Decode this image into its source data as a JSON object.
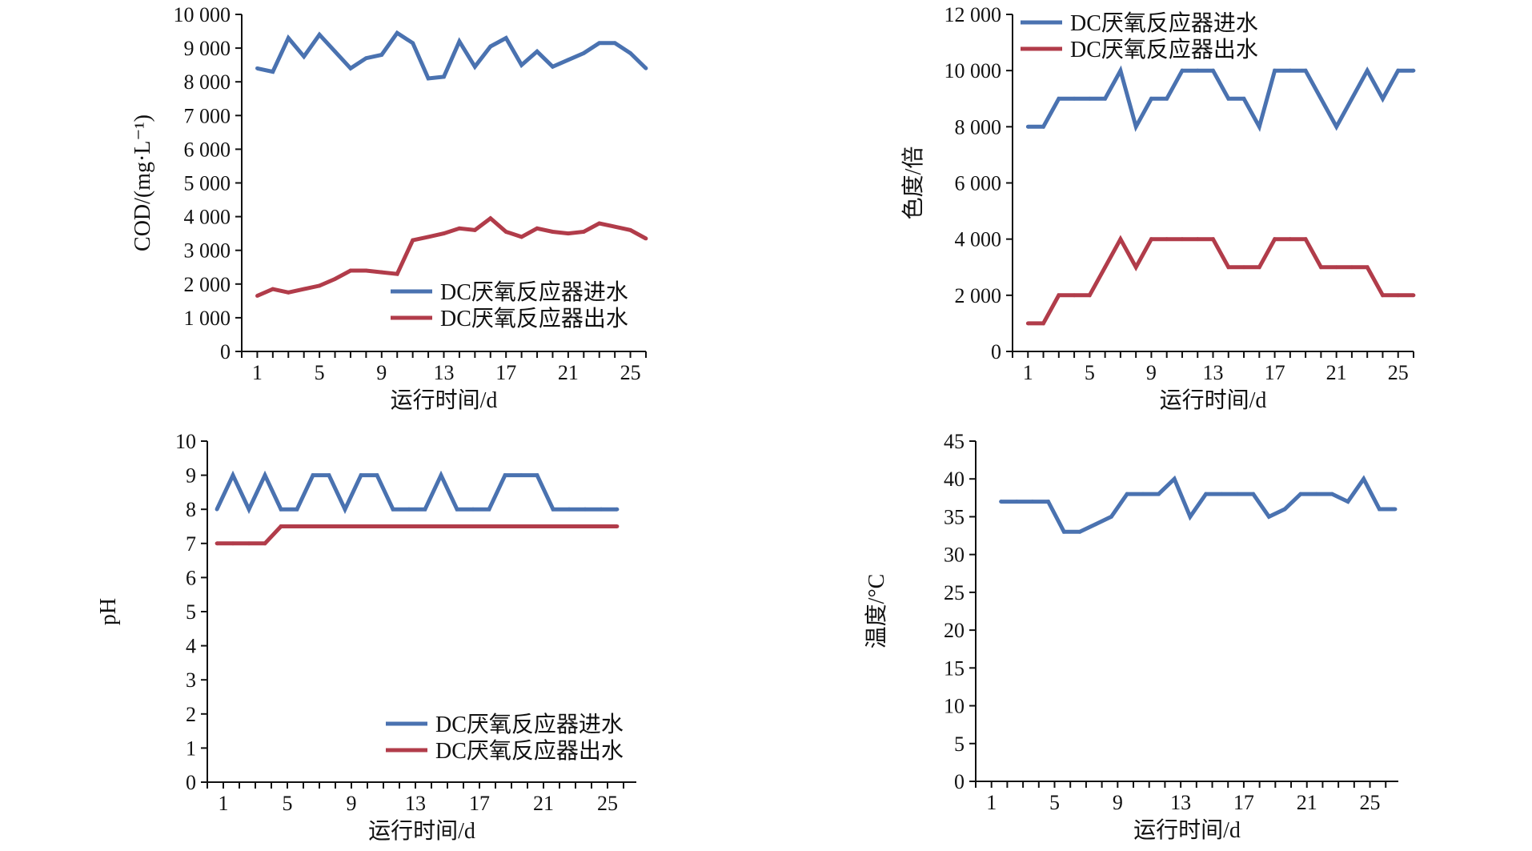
{
  "colors": {
    "inflow": "#4a72b0",
    "outflow": "#b13c4a",
    "axis": "#111111"
  },
  "series_names": {
    "inflow": "DC厌氧反应器进水",
    "outflow": "DC厌氧反应器出水"
  },
  "chart_data": [
    {
      "id": "cod",
      "type": "line",
      "xlabel": "运行时间/d",
      "ylabel": "COD/(mg·L⁻¹)",
      "xlim": [
        0,
        26
      ],
      "xticks": [
        1,
        5,
        9,
        13,
        17,
        21,
        25
      ],
      "ylim": [
        0,
        10000
      ],
      "yticks": [
        0,
        1000,
        2000,
        3000,
        4000,
        5000,
        6000,
        7000,
        8000,
        9000,
        10000
      ],
      "ytick_labels": [
        "0",
        "1 000",
        "2 000",
        "3 000",
        "4 000",
        "5 000",
        "6 000",
        "7 000",
        "8 000",
        "9 000",
        "10 000"
      ],
      "legend": "bottom-right",
      "x": [
        1,
        2,
        3,
        4,
        5,
        6,
        7,
        8,
        9,
        10,
        11,
        12,
        13,
        14,
        15,
        16,
        17,
        18,
        19,
        20,
        21,
        22,
        23,
        24,
        25,
        26
      ],
      "series": [
        {
          "name": "DC厌氧反应器进水",
          "key": "inflow",
          "values": [
            8400,
            8300,
            9300,
            8750,
            9400,
            8900,
            8400,
            8700,
            8800,
            9450,
            9150,
            8100,
            8150,
            9200,
            8450,
            9050,
            9300,
            8500,
            8900,
            8450,
            8650,
            8850,
            9150,
            9150,
            8850,
            8400
          ]
        },
        {
          "name": "DC厌氧反应器出水",
          "key": "outflow",
          "values": [
            1650,
            1850,
            1750,
            1850,
            1950,
            2150,
            2400,
            2400,
            2350,
            2300,
            3300,
            3400,
            3500,
            3650,
            3600,
            3950,
            3550,
            3400,
            3650,
            3550,
            3500,
            3550,
            3800,
            3700,
            3600,
            3350
          ]
        }
      ]
    },
    {
      "id": "color",
      "type": "line",
      "xlabel": "运行时间/d",
      "ylabel": "色度/倍",
      "xlim": [
        0,
        26
      ],
      "xticks": [
        1,
        5,
        9,
        13,
        17,
        21,
        25
      ],
      "ylim": [
        0,
        12000
      ],
      "yticks": [
        0,
        2000,
        4000,
        6000,
        8000,
        10000,
        12000
      ],
      "ytick_labels": [
        "0",
        "2 000",
        "4 000",
        "6 000",
        "8 000",
        "10 000",
        "12 000"
      ],
      "legend": "top-left",
      "x": [
        1,
        2,
        3,
        4,
        5,
        6,
        7,
        8,
        9,
        10,
        11,
        12,
        13,
        14,
        15,
        16,
        17,
        18,
        19,
        20,
        21,
        22,
        23,
        24,
        25,
        26
      ],
      "series": [
        {
          "name": "DC厌氧反应器进水",
          "key": "inflow",
          "values": [
            8000,
            8000,
            9000,
            9000,
            9000,
            9000,
            10000,
            8000,
            9000,
            9000,
            10000,
            10000,
            10000,
            9000,
            9000,
            8000,
            10000,
            10000,
            10000,
            9000,
            8000,
            9000,
            10000,
            9000,
            10000,
            10000
          ]
        },
        {
          "name": "DC厌氧反应器出水",
          "key": "outflow",
          "values": [
            1000,
            1000,
            2000,
            2000,
            2000,
            3000,
            4000,
            3000,
            4000,
            4000,
            4000,
            4000,
            4000,
            3000,
            3000,
            3000,
            4000,
            4000,
            4000,
            3000,
            3000,
            3000,
            3000,
            2000,
            2000,
            2000
          ]
        }
      ]
    },
    {
      "id": "ph",
      "type": "line",
      "xlabel": "运行时间/d",
      "ylabel": "pH",
      "xlim": [
        0,
        26.8
      ],
      "xticks": [
        1,
        5,
        9,
        13,
        17,
        21,
        25
      ],
      "ylim": [
        0,
        10
      ],
      "yticks": [
        0,
        1,
        2,
        3,
        4,
        5,
        6,
        7,
        8,
        9,
        10
      ],
      "ytick_labels": [
        "0",
        "1",
        "2",
        "3",
        "4",
        "5",
        "6",
        "7",
        "8",
        "9",
        "10"
      ],
      "legend": "bottom-right",
      "x": [
        0.6,
        1.6,
        2.6,
        3.6,
        4.6,
        5.6,
        6.6,
        7.6,
        8.6,
        9.6,
        10.6,
        11.6,
        12.6,
        13.6,
        14.6,
        15.6,
        16.6,
        17.6,
        18.6,
        19.6,
        20.6,
        21.6,
        22.6,
        23.6,
        24.6,
        25.6
      ],
      "series": [
        {
          "name": "DC厌氧反应器进水",
          "key": "inflow",
          "values": [
            8,
            9,
            8,
            9,
            8,
            8,
            9,
            9,
            8,
            9,
            9,
            8,
            8,
            8,
            9,
            8,
            8,
            8,
            9,
            9,
            9,
            8,
            8,
            8,
            8,
            8
          ]
        },
        {
          "name": "DC厌氧反应器出水",
          "key": "outflow",
          "values": [
            7,
            7,
            7,
            7,
            7.5,
            7.5,
            7.5,
            7.5,
            7.5,
            7.5,
            7.5,
            7.5,
            7.5,
            7.5,
            7.5,
            7.5,
            7.5,
            7.5,
            7.5,
            7.5,
            7.5,
            7.5,
            7.5,
            7.5,
            7.5,
            7.5
          ]
        }
      ]
    },
    {
      "id": "temperature",
      "type": "line",
      "xlabel": "运行时间/d",
      "ylabel": "温度/°C",
      "xlim": [
        0,
        26.8
      ],
      "xticks": [
        1,
        5,
        9,
        13,
        17,
        21,
        25
      ],
      "ylim": [
        0,
        45
      ],
      "yticks": [
        0,
        5,
        10,
        15,
        20,
        25,
        30,
        35,
        40,
        45
      ],
      "ytick_labels": [
        "0",
        "5",
        "10",
        "15",
        "20",
        "25",
        "30",
        "35",
        "40",
        "45"
      ],
      "legend": "none",
      "x": [
        1.6,
        2.6,
        3.6,
        4.6,
        5.6,
        6.6,
        7.6,
        8.6,
        9.6,
        10.6,
        11.6,
        12.6,
        13.6,
        14.6,
        15.6,
        16.6,
        17.6,
        18.6,
        19.6,
        20.6,
        21.6,
        22.6,
        23.6,
        24.6,
        25.6,
        26.6
      ],
      "series": [
        {
          "name": "DC厌氧反应器进水",
          "key": "inflow",
          "values": [
            37,
            37,
            37,
            37,
            33,
            33,
            34,
            35,
            38,
            38,
            38,
            40,
            35,
            38,
            38,
            38,
            38,
            35,
            36,
            38,
            38,
            38,
            37,
            40,
            36,
            36
          ]
        }
      ]
    }
  ]
}
